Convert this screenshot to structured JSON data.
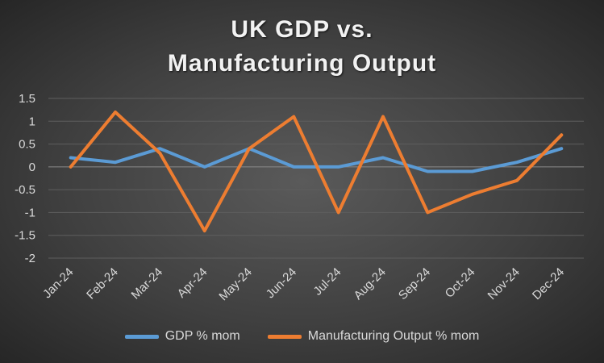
{
  "chart_data": {
    "type": "line",
    "title_lines": [
      "UK GDP vs.",
      "Manufacturing Output"
    ],
    "categories": [
      "Jan-24",
      "Feb-24",
      "Mar-24",
      "Apr-24",
      "May-24",
      "Jun-24",
      "Jul-24",
      "Aug-24",
      "Sep-24",
      "Oct-24",
      "Nov-24",
      "Dec-24"
    ],
    "ylim": [
      -2,
      1.5
    ],
    "yticks": [
      1.5,
      1,
      0.5,
      0,
      -0.5,
      -1,
      -1.5,
      -2
    ],
    "ytick_labels": [
      "1.5",
      "1",
      "0.5",
      "0",
      "-0.5",
      "-1",
      "-1.5",
      "-2"
    ],
    "grid": true,
    "legend_position": "bottom",
    "series": [
      {
        "name": "GDP % mom",
        "color": "#5b9bd5",
        "values": [
          0.2,
          0.1,
          0.4,
          0.0,
          0.4,
          0.0,
          0.0,
          0.2,
          -0.1,
          -0.1,
          0.1,
          0.4
        ]
      },
      {
        "name": "Manufacturing Output % mom",
        "color": "#ed7d31",
        "values": [
          0.0,
          1.2,
          0.3,
          -1.4,
          0.4,
          1.1,
          -1.0,
          1.1,
          -1.0,
          -0.6,
          -0.3,
          0.7
        ]
      }
    ]
  }
}
